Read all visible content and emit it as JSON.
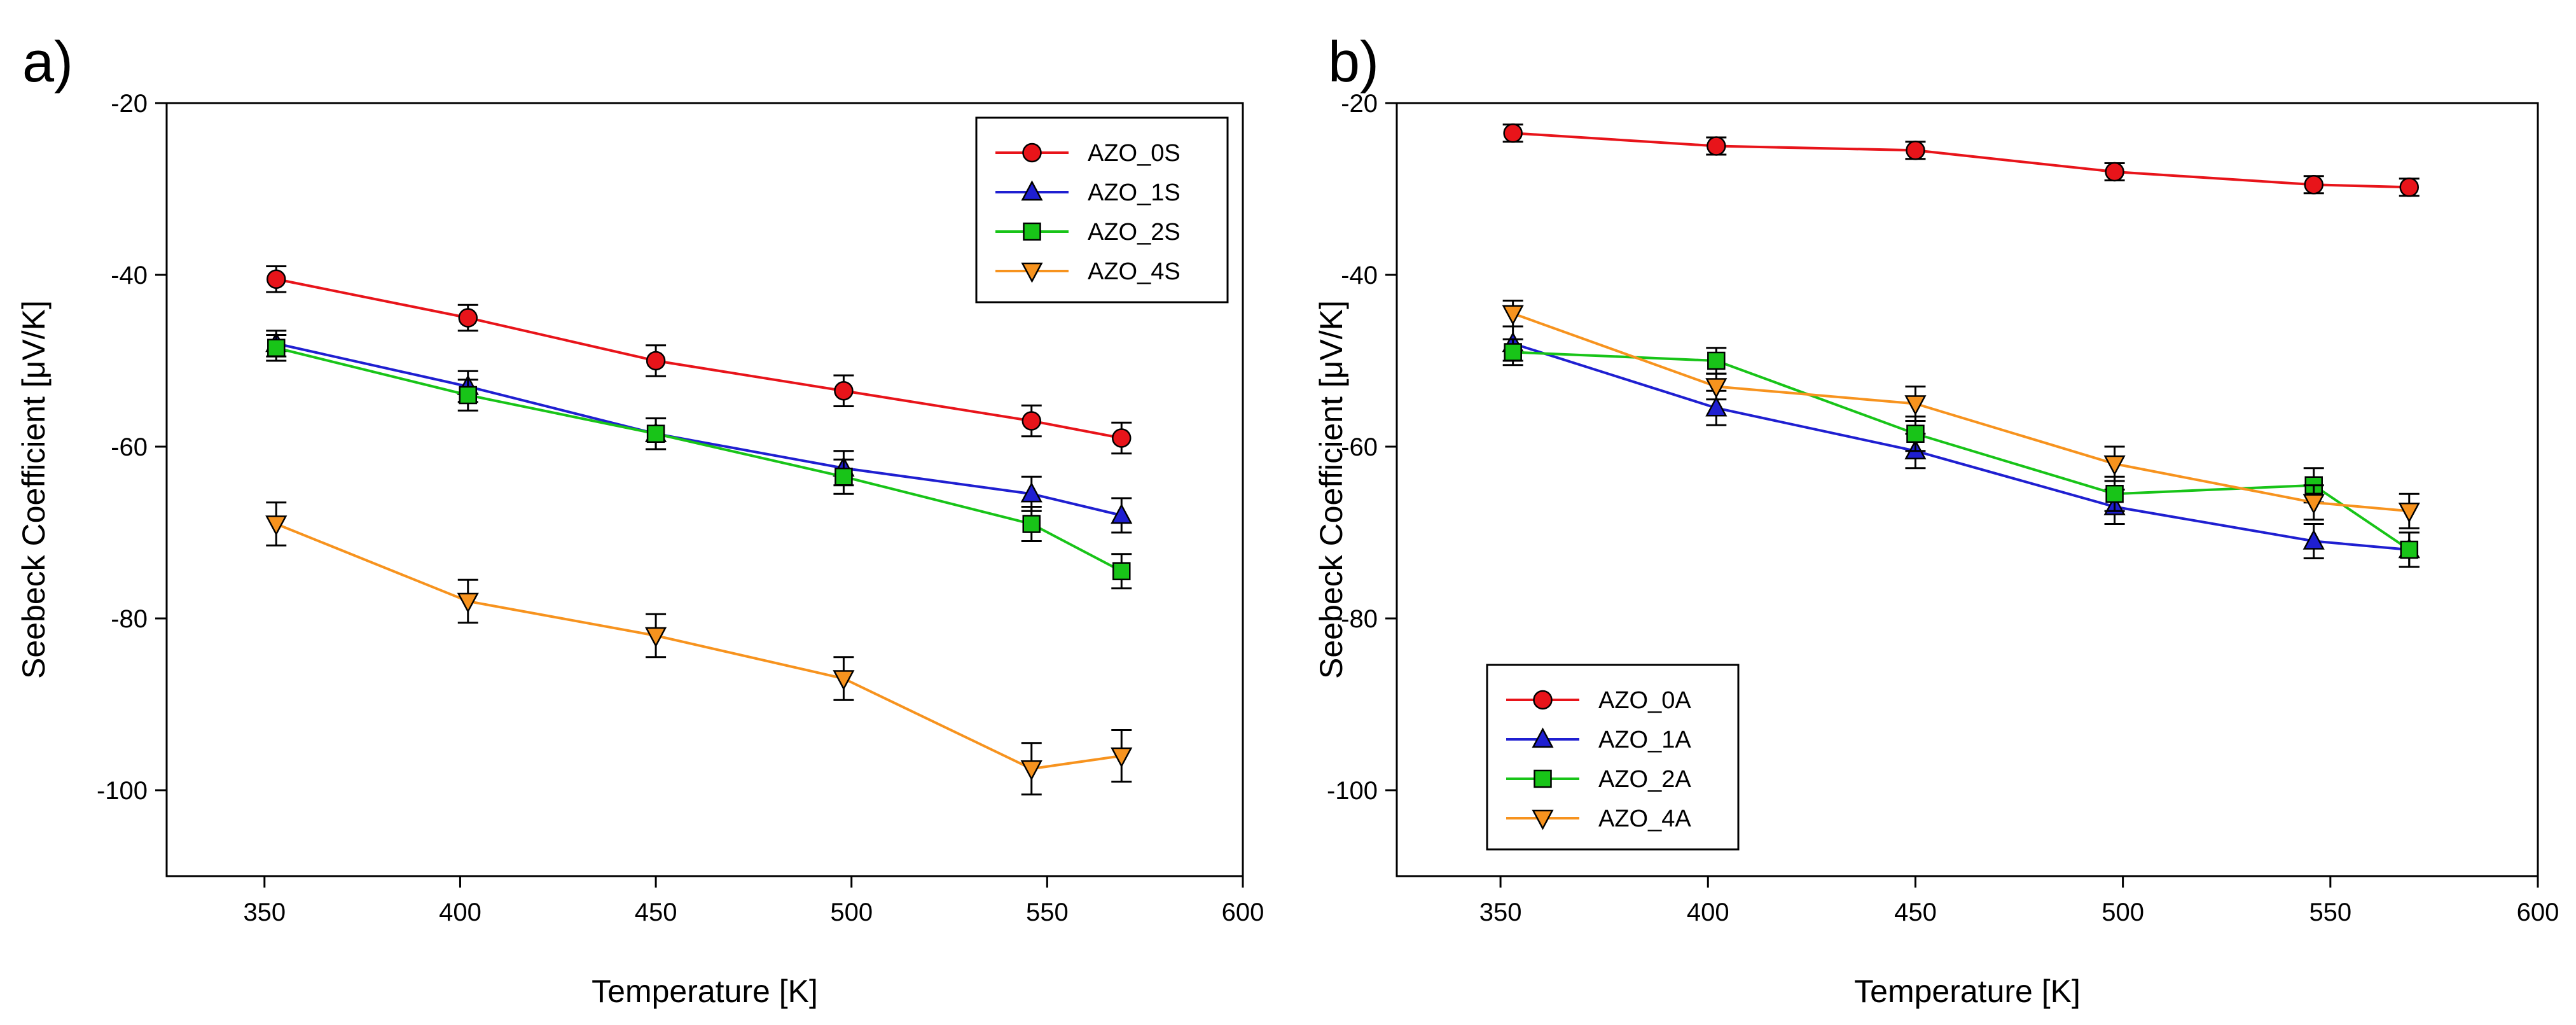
{
  "chart_data": [
    {
      "type": "line",
      "panel_label": "a)",
      "xlabel": "Temperature [K]",
      "ylabel": "Seebeck Coefficient [μV/K]",
      "xlim": [
        325,
        600
      ],
      "ylim": [
        -110,
        -20
      ],
      "xticks": [
        "350",
        "400",
        "450",
        "500",
        "550",
        "600"
      ],
      "yticks": [
        "-20",
        "-40",
        "-60",
        "-80",
        "-100"
      ],
      "legend_position": "top-right",
      "series": [
        {
          "name": "AZO_0S",
          "color": "#e8141a",
          "marker": "circle",
          "x": [
            353,
            402,
            450,
            498,
            546,
            569
          ],
          "y": [
            -40.5,
            -45,
            -50,
            -53.5,
            -57,
            -59
          ],
          "err": [
            1.5,
            1.5,
            1.8,
            1.8,
            1.8,
            1.8
          ]
        },
        {
          "name": "AZO_1S",
          "color": "#1f1fd1",
          "marker": "triangle-up",
          "x": [
            353,
            402,
            450,
            498,
            546,
            569
          ],
          "y": [
            -48,
            -53,
            -58.5,
            -62.5,
            -65.5,
            -68
          ],
          "err": [
            1.5,
            1.8,
            1.8,
            2,
            2,
            2
          ]
        },
        {
          "name": "AZO_2S",
          "color": "#18c418",
          "marker": "square",
          "x": [
            353,
            402,
            450,
            498,
            546,
            569
          ],
          "y": [
            -48.5,
            -54,
            -58.5,
            -63.5,
            -69,
            -74.5
          ],
          "err": [
            1.5,
            1.8,
            1.8,
            2,
            2,
            2
          ]
        },
        {
          "name": "AZO_4S",
          "color": "#f7931e",
          "marker": "triangle-down",
          "x": [
            353,
            402,
            450,
            498,
            546,
            569
          ],
          "y": [
            -69,
            -78,
            -82,
            -87,
            -97.5,
            -96
          ],
          "err": [
            2.5,
            2.5,
            2.5,
            2.5,
            3,
            3
          ]
        }
      ]
    },
    {
      "type": "line",
      "panel_label": "b)",
      "xlabel": "Temperature [K]",
      "ylabel": "Seebeck Coefficient [μV/K]",
      "xlim": [
        325,
        600
      ],
      "ylim": [
        -110,
        -20
      ],
      "xticks": [
        "350",
        "400",
        "450",
        "500",
        "550",
        "600"
      ],
      "yticks": [
        "-20",
        "-40",
        "-60",
        "-80",
        "-100"
      ],
      "legend_position": "bottom-left",
      "series": [
        {
          "name": "AZO_0A",
          "color": "#e8141a",
          "marker": "circle",
          "x": [
            353,
            402,
            450,
            498,
            546,
            569
          ],
          "y": [
            -23.5,
            -25,
            -25.5,
            -28,
            -29.5,
            -29.8
          ],
          "err": [
            1,
            1,
            1,
            1,
            1,
            1
          ]
        },
        {
          "name": "AZO_1A",
          "color": "#1f1fd1",
          "marker": "triangle-up",
          "x": [
            353,
            402,
            450,
            498,
            546,
            569
          ],
          "y": [
            -48,
            -55.5,
            -60.5,
            -67,
            -71,
            -72
          ],
          "err": [
            2,
            2,
            2,
            2,
            2,
            2
          ]
        },
        {
          "name": "AZO_2A",
          "color": "#18c418",
          "marker": "square",
          "x": [
            353,
            402,
            450,
            498,
            546,
            569
          ],
          "y": [
            -49,
            -50,
            -58.5,
            -65.5,
            -64.5,
            -72
          ],
          "err": [
            1.5,
            1.5,
            2,
            2,
            2,
            2
          ]
        },
        {
          "name": "AZO_4A",
          "color": "#f7931e",
          "marker": "triangle-down",
          "x": [
            353,
            402,
            450,
            498,
            546,
            569
          ],
          "y": [
            -44.5,
            -53,
            -55,
            -62,
            -66.5,
            -67.5
          ],
          "err": [
            1.5,
            1.5,
            2,
            2,
            2,
            2
          ]
        }
      ]
    }
  ]
}
